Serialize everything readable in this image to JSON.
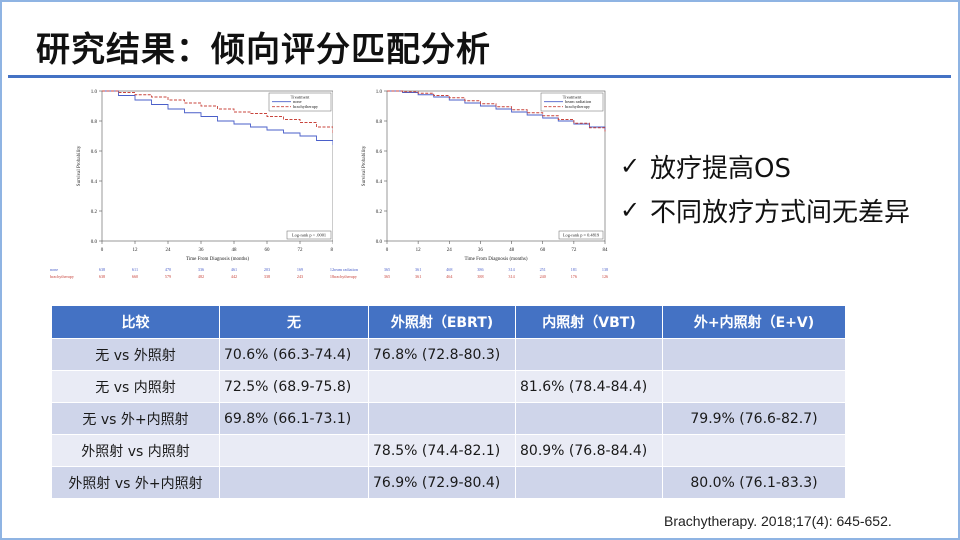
{
  "title": "研究结果：倾向评分匹配分析",
  "conclusions": [
    "放疗提高OS",
    "不同放疗方式间无差异"
  ],
  "citation": "Brachytherapy. 2018;17(4): 645-652.",
  "colors": {
    "accent": "#4472c4",
    "row_odd": "#cfd5ea",
    "row_even": "#e9ebf5",
    "curve_blue": "#4a5fc9",
    "curve_red": "#c8443c"
  },
  "table": {
    "headers": [
      "比较",
      "无",
      "外照射（EBRT)",
      "内照射（VBT)",
      "外+内照射（E+V)"
    ],
    "rows": [
      [
        "无 vs 外照射",
        "70.6% (66.3-74.4)",
        "76.8% (72.8-80.3)",
        "",
        ""
      ],
      [
        "无 vs 内照射",
        "72.5% (68.9-75.8)",
        "",
        "81.6% (78.4-84.4)",
        ""
      ],
      [
        "无 vs 外+内照射",
        "69.8% (66.1-73.1)",
        "",
        "",
        "79.9% (76.6-82.7)"
      ],
      [
        "外照射 vs 内照射",
        "",
        "78.5% (74.4-82.1)",
        "80.9% (76.8-84.4)",
        ""
      ],
      [
        "外照射 vs 外+内照射",
        "",
        "76.9% (72.9-80.4)",
        "",
        "80.0% (76.1-83.3)"
      ]
    ]
  },
  "chart_data": [
    {
      "type": "line",
      "xlabel": "Time From Diagnosis (months)",
      "ylabel": "Survival Probability",
      "xlim": [
        0,
        84
      ],
      "ylim": [
        0,
        1
      ],
      "xticks": [
        "0",
        "12",
        "24",
        "36",
        "48",
        "60",
        "72",
        "84"
      ],
      "yticks": [
        "0.0",
        "0.2",
        "0.4",
        "0.6",
        "0.8",
        "1.0"
      ],
      "legend_title": "Treatment",
      "legend_position": "top-right",
      "pvalue": "Log-rank p < .0001",
      "series": [
        {
          "name": "none",
          "color": "#4a5fc9",
          "dash": "solid",
          "x": [
            0,
            6,
            12,
            18,
            24,
            30,
            36,
            42,
            48,
            54,
            60,
            66,
            72,
            78,
            84
          ],
          "y": [
            1.0,
            0.97,
            0.94,
            0.91,
            0.88,
            0.855,
            0.83,
            0.8,
            0.78,
            0.76,
            0.74,
            0.72,
            0.7,
            0.67,
            0.64
          ]
        },
        {
          "name": "brachytherapy",
          "color": "#c8443c",
          "dash": "dashed",
          "x": [
            0,
            6,
            12,
            18,
            24,
            30,
            36,
            42,
            48,
            54,
            60,
            66,
            72,
            78,
            84
          ],
          "y": [
            1.0,
            0.99,
            0.975,
            0.96,
            0.94,
            0.92,
            0.9,
            0.88,
            0.86,
            0.85,
            0.83,
            0.81,
            0.79,
            0.76,
            0.71
          ]
        }
      ],
      "risk_labels": [
        "none",
        "brachytherapy"
      ],
      "risk_table": [
        [
          "638",
          "611",
          "470",
          "336",
          "461",
          "203",
          "169",
          "124"
        ],
        [
          "638",
          "660",
          "579",
          "482",
          "442",
          "338",
          "243",
          "184"
        ]
      ]
    },
    {
      "type": "line",
      "xlabel": "Time From Diagnosis (months)",
      "ylabel": "Survival Probability",
      "xlim": [
        0,
        84
      ],
      "ylim": [
        0,
        1
      ],
      "xticks": [
        "0",
        "12",
        "24",
        "36",
        "48",
        "60",
        "72",
        "84"
      ],
      "yticks": [
        "0.0",
        "0.2",
        "0.4",
        "0.6",
        "0.8",
        "1.0"
      ],
      "legend_title": "Treatment",
      "legend_position": "top-right",
      "pvalue": "Log-rank p = 0.4819",
      "series": [
        {
          "name": "beam radiation",
          "color": "#4a5fc9",
          "dash": "solid",
          "x": [
            0,
            6,
            12,
            18,
            24,
            30,
            36,
            42,
            48,
            54,
            60,
            66,
            72,
            78,
            84
          ],
          "y": [
            1.0,
            0.99,
            0.975,
            0.96,
            0.94,
            0.92,
            0.9,
            0.88,
            0.86,
            0.84,
            0.82,
            0.8,
            0.78,
            0.76,
            0.735
          ]
        },
        {
          "name": "brachytherapy",
          "color": "#c8443c",
          "dash": "dashed",
          "x": [
            0,
            6,
            12,
            18,
            24,
            30,
            36,
            42,
            48,
            54,
            60,
            66,
            72,
            78,
            84
          ],
          "y": [
            1.0,
            0.995,
            0.985,
            0.97,
            0.955,
            0.935,
            0.915,
            0.895,
            0.875,
            0.855,
            0.835,
            0.81,
            0.785,
            0.755,
            0.73
          ]
        }
      ],
      "risk_labels": [
        "beam radiation",
        "brachytherapy"
      ],
      "risk_table": [
        [
          "365",
          "361",
          "468",
          "386",
          "314",
          "251",
          "181",
          "138"
        ],
        [
          "365",
          "361",
          "464",
          "388",
          "314",
          "240",
          "176",
          "126"
        ]
      ]
    }
  ]
}
